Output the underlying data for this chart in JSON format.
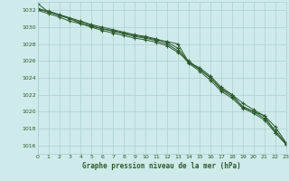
{
  "title": "Graphe pression niveau de la mer (hPa)",
  "background_color": "#ceeaea",
  "grid_color": "#aed0d0",
  "line_color": "#2d5a2d",
  "xmin": 0,
  "xmax": 23,
  "ymin": 1015,
  "ymax": 1033,
  "yticks": [
    1016,
    1018,
    1020,
    1022,
    1024,
    1026,
    1028,
    1030,
    1032
  ],
  "xticks": [
    0,
    1,
    2,
    3,
    4,
    5,
    6,
    7,
    8,
    9,
    10,
    11,
    12,
    13,
    14,
    15,
    16,
    17,
    18,
    19,
    20,
    21,
    22,
    23
  ],
  "series": [
    [
      1032.8,
      1031.8,
      1031.4,
      1031.0,
      1030.4,
      1030.1,
      1029.8,
      1029.6,
      1029.3,
      1029.0,
      1028.8,
      1028.5,
      1028.3,
      1028.0,
      1025.8,
      1025.2,
      1024.2,
      1022.9,
      1022.0,
      1020.5,
      1020.0,
      1019.5,
      1017.5,
      1016.2
    ],
    [
      1032.0,
      1031.6,
      1031.2,
      1030.7,
      1030.4,
      1030.0,
      1029.6,
      1029.3,
      1029.0,
      1028.7,
      1028.5,
      1028.2,
      1027.8,
      1027.0,
      1026.0,
      1025.0,
      1024.0,
      1022.7,
      1022.0,
      1021.0,
      1020.2,
      1019.5,
      1018.2,
      1016.3
    ],
    [
      1032.1,
      1031.8,
      1031.4,
      1031.0,
      1030.6,
      1030.2,
      1029.8,
      1029.5,
      1029.2,
      1028.9,
      1028.7,
      1028.4,
      1028.0,
      1027.2,
      1025.7,
      1024.8,
      1023.7,
      1022.4,
      1021.6,
      1020.4,
      1019.8,
      1019.0,
      1017.5,
      1016.1
    ],
    [
      1032.2,
      1031.9,
      1031.5,
      1031.1,
      1030.7,
      1030.3,
      1030.0,
      1029.7,
      1029.4,
      1029.1,
      1028.9,
      1028.6,
      1028.2,
      1027.5,
      1025.8,
      1025.0,
      1024.0,
      1022.6,
      1021.8,
      1020.6,
      1020.0,
      1019.2,
      1017.8,
      1016.2
    ]
  ]
}
